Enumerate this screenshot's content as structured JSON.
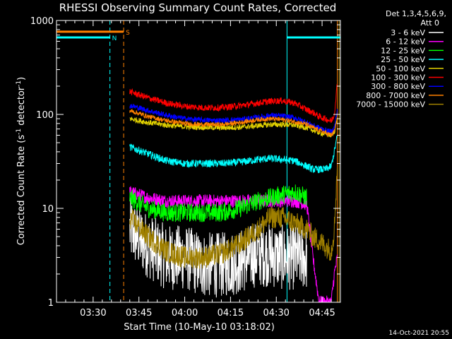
{
  "chart_data": {
    "type": "line",
    "title": "RHESSI Observing Summary Count Rates, Corrected",
    "xlabel": "Start Time (10-May-10 03:18:02)",
    "ylabel_main": "Corrected Count Rate (s",
    "ylabel_sup1": "-1",
    "ylabel_mid": " detector",
    "ylabel_sup2": "-1",
    "ylabel_end": ")",
    "yscale": "log",
    "ylim": [
      1,
      1000
    ],
    "xlim_minutes": [
      0,
      93
    ],
    "x_tick_labels": [
      "03:30",
      "03:45",
      "04:00",
      "04:15",
      "04:30",
      "04:45"
    ],
    "x_tick_minutes": [
      12,
      27,
      42,
      57,
      72,
      87
    ],
    "y_tick_labels": [
      "1",
      "10",
      "100",
      "1000"
    ],
    "y_tick_values": [
      1,
      10,
      100,
      1000
    ],
    "legend_header_1": "Det 1,3,4,5,6,9,",
    "legend_header_2": "Att 0",
    "footer_date": "14-Oct-2021 20:55",
    "flags": [
      {
        "label": "S",
        "color": "#ff8000",
        "start_minute": 0,
        "end_minute": 22,
        "level": 760
      },
      {
        "label": "N",
        "color": "#00ffff",
        "start_minute": 0,
        "end_minute": 17.5,
        "level": 660
      },
      {
        "label": "",
        "color": "#00ffff",
        "start_minute": 75.5,
        "end_minute": 93,
        "level": 660
      }
    ],
    "vlines": [
      {
        "minute": 17.5,
        "color": "#00ffff",
        "style": "dashed"
      },
      {
        "minute": 22,
        "color": "#ff8000",
        "style": "dashed"
      },
      {
        "minute": 75.5,
        "color": "#00ffff",
        "style": "solid"
      },
      {
        "minute": 92,
        "color": "#ff8000",
        "style": "solid"
      },
      {
        "minute": 92.6,
        "color": "#a08000",
        "style": "solid"
      }
    ],
    "x_minutes": [
      24,
      30,
      36,
      42,
      48,
      54,
      60,
      66,
      70,
      74,
      78,
      82,
      84,
      86,
      88,
      90,
      91,
      92
    ],
    "series": [
      {
        "name": "3 - 6 keV",
        "color": "#ffffff",
        "noise": 0.35,
        "values": [
          6,
          4,
          3,
          3,
          2.5,
          2.5,
          2.7,
          3.3,
          3.2,
          3,
          3,
          3,
          null,
          null,
          null,
          null,
          null,
          null
        ]
      },
      {
        "name": "6 - 12 keV",
        "color": "#ff00ff",
        "noise": 0.07,
        "values": [
          15,
          13,
          12,
          12,
          12,
          12,
          12,
          12,
          12,
          12,
          12,
          11,
          3,
          1,
          1,
          1,
          2,
          3
        ]
      },
      {
        "name": "12 - 25 keV",
        "color": "#00ff00",
        "noise": 0.1,
        "values": [
          13,
          10,
          9,
          9,
          9,
          9,
          10,
          12,
          13,
          14,
          15,
          13,
          null,
          null,
          null,
          null,
          null,
          null
        ]
      },
      {
        "name": "25 - 50 keV",
        "color": "#00ffff",
        "noise": 0.04,
        "values": [
          45,
          38,
          32,
          30,
          30,
          30,
          31,
          33,
          34,
          33,
          32,
          28,
          26,
          26,
          26,
          28,
          40,
          60
        ]
      },
      {
        "name": "50 - 100 keV",
        "color": "#e0d000",
        "noise": 0.03,
        "values": [
          90,
          82,
          77,
          74,
          73,
          72,
          73,
          76,
          78,
          78,
          77,
          72,
          68,
          64,
          62,
          60,
          65,
          90
        ]
      },
      {
        "name": "100 - 300 keV",
        "color": "#ff0000",
        "noise": 0.035,
        "values": [
          175,
          150,
          132,
          122,
          118,
          118,
          124,
          132,
          138,
          140,
          132,
          112,
          105,
          95,
          90,
          85,
          100,
          220
        ]
      },
      {
        "name": "300 - 800 keV",
        "color": "#0000ff",
        "noise": 0.03,
        "values": [
          125,
          110,
          98,
          90,
          87,
          86,
          88,
          93,
          98,
          96,
          92,
          82,
          76,
          72,
          68,
          65,
          72,
          110
        ]
      },
      {
        "name": "800 - 7000 keV",
        "color": "#ff8000",
        "noise": 0.025,
        "values": [
          110,
          95,
          86,
          80,
          78,
          78,
          82,
          88,
          90,
          88,
          84,
          78,
          72,
          68,
          64,
          60,
          66,
          90
        ]
      },
      {
        "name": "7000 - 15000 keV",
        "color": "#a08000",
        "noise": 0.12,
        "values": [
          8,
          5,
          3.5,
          3,
          3,
          3.3,
          4.2,
          6,
          8,
          8,
          7,
          6,
          5,
          4.5,
          4,
          3.5,
          6,
          30
        ]
      }
    ]
  }
}
